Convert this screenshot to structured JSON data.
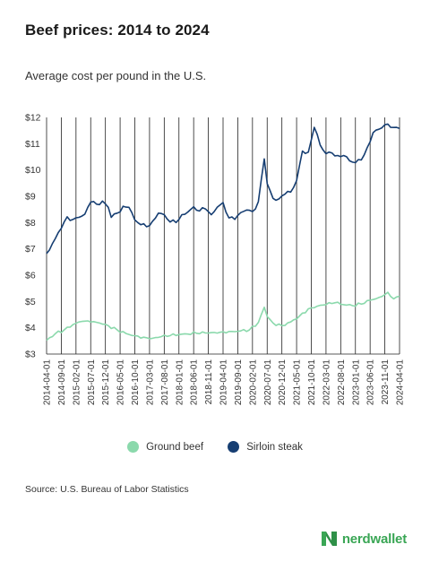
{
  "title": "Beef prices: 2014 to 2024",
  "subtitle": "Average cost per pound in the U.S.",
  "source": "Source: U.S. Bureau of Labor Statistics",
  "brand": {
    "name": "nerdwallet",
    "color": "#3aa655"
  },
  "chart_data": {
    "type": "line",
    "ylim": [
      3,
      12
    ],
    "yticks": [
      "$3",
      "$4",
      "$5",
      "$6",
      "$7",
      "$8",
      "$9",
      "$10",
      "$11",
      "$12"
    ],
    "xticks": [
      "2014-04-01",
      "2014-09-01",
      "2015-02-01",
      "2015-07-01",
      "2015-12-01",
      "2016-05-01",
      "2016-10-01",
      "2017-03-01",
      "2017-08-01",
      "2018-01-01",
      "2018-06-01",
      "2018-11-01",
      "2019-04-01",
      "2019-09-01",
      "2020-02-01",
      "2020-07-01",
      "2020-12-01",
      "2021-05-01",
      "2021-10-01",
      "2022-03-01",
      "2022-08-01",
      "2023-01-01",
      "2023-06-01",
      "2023-11-01",
      "2024-04-01"
    ],
    "x_start": "2014-04",
    "x_end": "2024-04",
    "grid": "vertical",
    "legend_position": "bottom",
    "series": [
      {
        "name": "Ground beef",
        "color": "#8bd9ac",
        "anchors": [
          [
            "2014-04",
            3.52
          ],
          [
            "2014-07",
            3.78
          ],
          [
            "2014-10",
            3.92
          ],
          [
            "2015-01",
            4.12
          ],
          [
            "2015-04",
            4.24
          ],
          [
            "2015-07",
            4.22
          ],
          [
            "2015-10",
            4.18
          ],
          [
            "2016-01",
            4.08
          ],
          [
            "2016-04",
            3.92
          ],
          [
            "2016-07",
            3.78
          ],
          [
            "2016-10",
            3.7
          ],
          [
            "2017-01",
            3.64
          ],
          [
            "2017-04",
            3.6
          ],
          [
            "2017-07",
            3.66
          ],
          [
            "2017-10",
            3.7
          ],
          [
            "2018-01",
            3.74
          ],
          [
            "2018-04",
            3.76
          ],
          [
            "2018-07",
            3.79
          ],
          [
            "2018-10",
            3.8
          ],
          [
            "2019-01",
            3.82
          ],
          [
            "2019-04",
            3.85
          ],
          [
            "2019-07",
            3.86
          ],
          [
            "2019-10",
            3.88
          ],
          [
            "2020-01",
            3.92
          ],
          [
            "2020-04",
            4.2
          ],
          [
            "2020-06",
            4.78
          ],
          [
            "2020-07",
            4.42
          ],
          [
            "2020-09",
            4.18
          ],
          [
            "2020-12",
            4.08
          ],
          [
            "2021-03",
            4.22
          ],
          [
            "2021-06",
            4.45
          ],
          [
            "2021-09",
            4.72
          ],
          [
            "2021-12",
            4.82
          ],
          [
            "2022-03",
            4.88
          ],
          [
            "2022-06",
            4.95
          ],
          [
            "2022-09",
            4.88
          ],
          [
            "2022-12",
            4.84
          ],
          [
            "2023-03",
            4.9
          ],
          [
            "2023-06",
            5.05
          ],
          [
            "2023-09",
            5.15
          ],
          [
            "2023-12",
            5.35
          ],
          [
            "2024-02",
            5.1
          ],
          [
            "2024-04",
            5.2
          ]
        ]
      },
      {
        "name": "Sirloin steak",
        "color": "#163e72",
        "anchors": [
          [
            "2014-04",
            6.82
          ],
          [
            "2014-07",
            7.4
          ],
          [
            "2014-09",
            7.78
          ],
          [
            "2014-11",
            8.22
          ],
          [
            "2015-01",
            8.12
          ],
          [
            "2015-03",
            8.2
          ],
          [
            "2015-05",
            8.32
          ],
          [
            "2015-07",
            8.78
          ],
          [
            "2015-09",
            8.7
          ],
          [
            "2015-11",
            8.82
          ],
          [
            "2016-01",
            8.58
          ],
          [
            "2016-02",
            8.2
          ],
          [
            "2016-04",
            8.36
          ],
          [
            "2016-06",
            8.62
          ],
          [
            "2016-08",
            8.58
          ],
          [
            "2016-10",
            8.1
          ],
          [
            "2016-12",
            7.92
          ],
          [
            "2017-02",
            7.84
          ],
          [
            "2017-04",
            8.05
          ],
          [
            "2017-06",
            8.36
          ],
          [
            "2017-08",
            8.3
          ],
          [
            "2017-10",
            8.02
          ],
          [
            "2017-12",
            8.0
          ],
          [
            "2018-02",
            8.3
          ],
          [
            "2018-04",
            8.4
          ],
          [
            "2018-06",
            8.6
          ],
          [
            "2018-08",
            8.44
          ],
          [
            "2018-10",
            8.52
          ],
          [
            "2018-12",
            8.3
          ],
          [
            "2019-02",
            8.58
          ],
          [
            "2019-04",
            8.76
          ],
          [
            "2019-06",
            8.18
          ],
          [
            "2019-08",
            8.12
          ],
          [
            "2019-10",
            8.38
          ],
          [
            "2019-12",
            8.48
          ],
          [
            "2020-02",
            8.42
          ],
          [
            "2020-04",
            8.8
          ],
          [
            "2020-06",
            10.42
          ],
          [
            "2020-07",
            9.48
          ],
          [
            "2020-09",
            8.92
          ],
          [
            "2020-11",
            8.9
          ],
          [
            "2021-01",
            9.08
          ],
          [
            "2021-03",
            9.16
          ],
          [
            "2021-05",
            9.6
          ],
          [
            "2021-07",
            10.72
          ],
          [
            "2021-09",
            10.68
          ],
          [
            "2021-11",
            11.62
          ],
          [
            "2022-01",
            10.95
          ],
          [
            "2022-03",
            10.62
          ],
          [
            "2022-05",
            10.65
          ],
          [
            "2022-07",
            10.55
          ],
          [
            "2022-09",
            10.55
          ],
          [
            "2022-11",
            10.35
          ],
          [
            "2023-01",
            10.28
          ],
          [
            "2023-03",
            10.38
          ],
          [
            "2023-05",
            10.85
          ],
          [
            "2023-07",
            11.42
          ],
          [
            "2023-09",
            11.55
          ],
          [
            "2023-11",
            11.72
          ],
          [
            "2024-01",
            11.62
          ],
          [
            "2024-03",
            11.62
          ],
          [
            "2024-04",
            11.58
          ]
        ]
      }
    ]
  }
}
